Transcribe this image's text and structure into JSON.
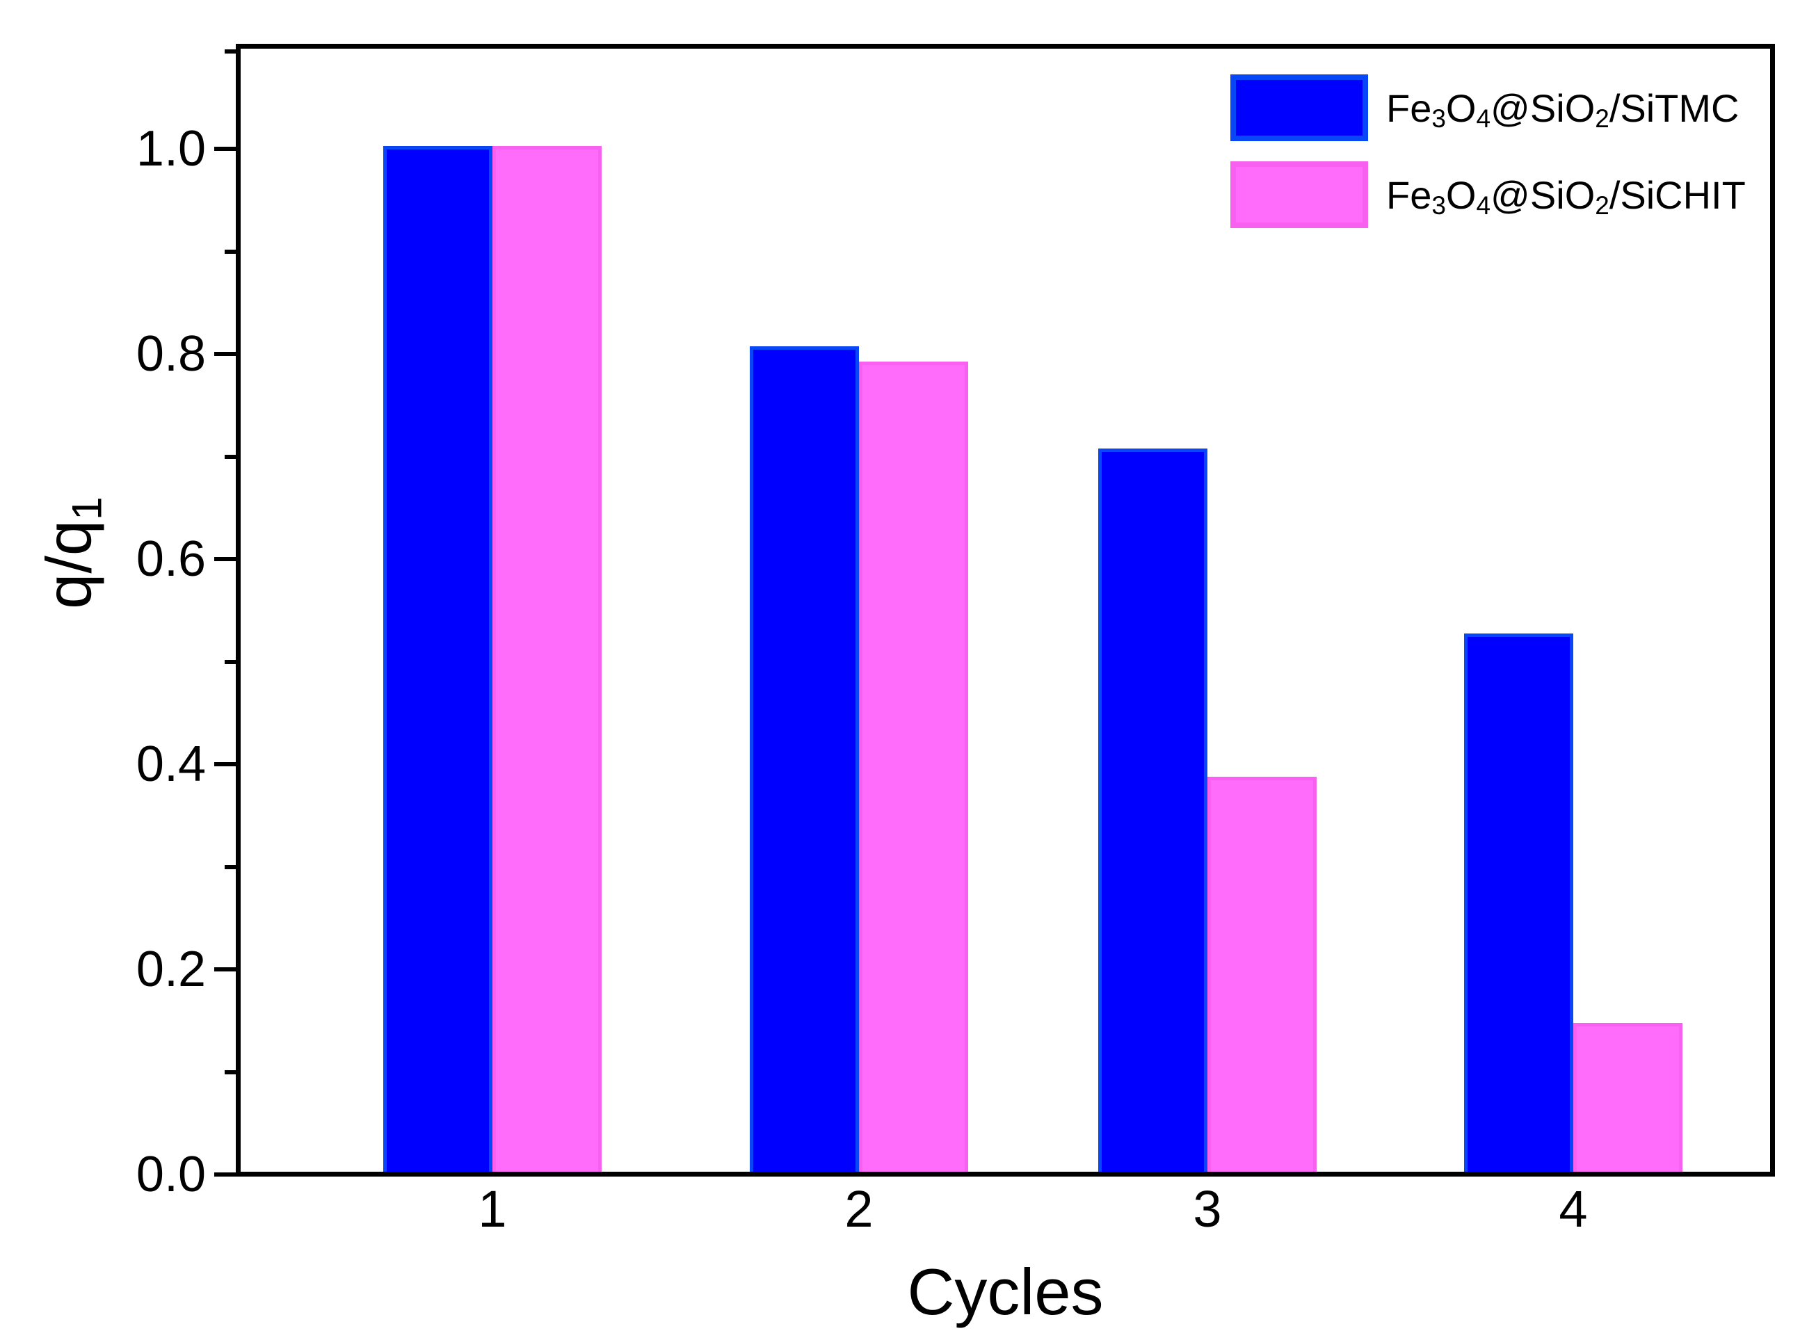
{
  "figure": {
    "background": "#FFFFFF",
    "frame_color": "#000000"
  },
  "axes": {
    "x": {
      "title": "Cycles",
      "tick_labels": [
        "1",
        "2",
        "3",
        "4"
      ]
    },
    "y": {
      "title_parts": [
        {
          "t": "q/q"
        },
        {
          "t": "1",
          "sub": true
        }
      ],
      "ticks": [
        {
          "v": 0.0,
          "label": "0.0"
        },
        {
          "v": 0.2,
          "label": "0.2"
        },
        {
          "v": 0.4,
          "label": "0.4"
        },
        {
          "v": 0.6,
          "label": "0.6"
        },
        {
          "v": 0.8,
          "label": "0.8"
        },
        {
          "v": 1.0,
          "label": "1.0"
        }
      ],
      "minor_ticks": [
        0.1,
        0.3,
        0.5,
        0.7,
        0.9
      ],
      "range": [
        0,
        1.095
      ]
    }
  },
  "legend": {
    "items": [
      {
        "series": 0,
        "label_parts": [
          {
            "t": "Fe"
          },
          {
            "t": "3",
            "sub": true
          },
          {
            "t": "O"
          },
          {
            "t": "4",
            "sub": true
          },
          {
            "t": "@SiO"
          },
          {
            "t": "2",
            "sub": true
          },
          {
            "t": "/SiTMC"
          }
        ]
      },
      {
        "series": 1,
        "label_parts": [
          {
            "t": "Fe"
          },
          {
            "t": "3",
            "sub": true
          },
          {
            "t": "O"
          },
          {
            "t": "4",
            "sub": true
          },
          {
            "t": "@SiO"
          },
          {
            "t": "2",
            "sub": true
          },
          {
            "t": "/SiCHIT"
          }
        ]
      }
    ]
  },
  "chart_data": {
    "type": "bar",
    "categories": [
      "1",
      "2",
      "3",
      "4"
    ],
    "series": [
      {
        "name": "Fe3O4@SiO2/SiTMC",
        "color": "#0000FE",
        "border": "#0747F7",
        "values": [
          1.0,
          0.805,
          0.705,
          0.525
        ]
      },
      {
        "name": "Fe3O4@SiO2/SiCHIT",
        "color": "#FF6BFA",
        "border": "#F860F0",
        "values": [
          1.0,
          0.79,
          0.385,
          0.145
        ]
      }
    ],
    "title": "",
    "xlabel": "Cycles",
    "ylabel": "q/q1",
    "ylim": [
      0,
      1.095
    ],
    "grid": false,
    "legend_position": "top-right"
  }
}
